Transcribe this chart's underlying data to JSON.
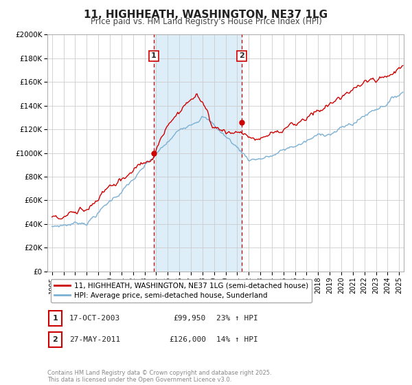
{
  "title": "11, HIGHHEATH, WASHINGTON, NE37 1LG",
  "subtitle": "Price paid vs. HM Land Registry's House Price Index (HPI)",
  "background_color": "#ffffff",
  "plot_bg_color": "#ffffff",
  "grid_color": "#cccccc",
  "sale1": {
    "label": "1",
    "date_str": "17-OCT-2003",
    "price": 99950,
    "hpi_pct": "23% ↑ HPI",
    "x_year": 2003.79
  },
  "sale2": {
    "label": "2",
    "date_str": "27-MAY-2011",
    "price": 126000,
    "hpi_pct": "14% ↑ HPI",
    "x_year": 2011.4
  },
  "legend_line1": "11, HIGHHEATH, WASHINGTON, NE37 1LG (semi-detached house)",
  "legend_line2": "HPI: Average price, semi-detached house, Sunderland",
  "footer": "Contains HM Land Registry data © Crown copyright and database right 2025.\nThis data is licensed under the Open Government Licence v3.0.",
  "line_color_red": "#cc0000",
  "line_color_blue": "#7ab0d4",
  "shade_color": "#deeef8",
  "marker_color": "#cc0000",
  "vline_color": "#cc0000",
  "ylim": [
    0,
    200000
  ],
  "yticks": [
    0,
    20000,
    40000,
    60000,
    80000,
    100000,
    120000,
    140000,
    160000,
    180000,
    200000
  ],
  "xlim_start": 1994.6,
  "xlim_end": 2025.4,
  "title_fontsize": 11,
  "subtitle_fontsize": 8.5
}
